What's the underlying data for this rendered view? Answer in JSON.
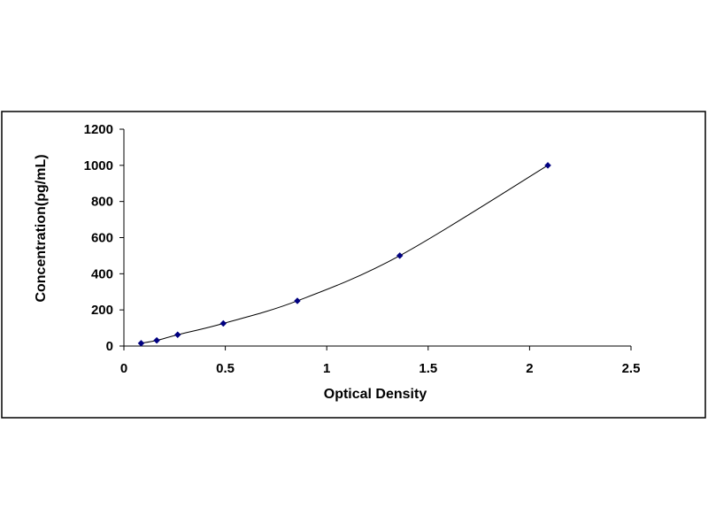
{
  "chart_data": {
    "type": "scatter",
    "title": "",
    "xlabel": "Optical Density",
    "ylabel": "Concentration(pg/mL)",
    "xlim": [
      0,
      2.5
    ],
    "ylim": [
      0,
      1200
    ],
    "x_ticks": [
      0,
      0.5,
      1,
      1.5,
      2,
      2.5
    ],
    "x_tick_labels": [
      "0",
      "0.5",
      "1",
      "1.5",
      "2",
      "2.5"
    ],
    "y_ticks": [
      0,
      200,
      400,
      600,
      800,
      1000,
      1200
    ],
    "y_tick_labels": [
      "0",
      "200",
      "400",
      "600",
      "800",
      "1000",
      "1200"
    ],
    "grid": false,
    "legend": "none",
    "series": [
      {
        "x": [
          0.085,
          0.162,
          0.265,
          0.49,
          0.855,
          1.36,
          2.09
        ],
        "y": [
          15.6,
          31.2,
          62.5,
          125,
          250,
          500,
          1000
        ],
        "marker": "diamond",
        "trendline": "smooth curve",
        "color": "#000080"
      }
    ]
  }
}
